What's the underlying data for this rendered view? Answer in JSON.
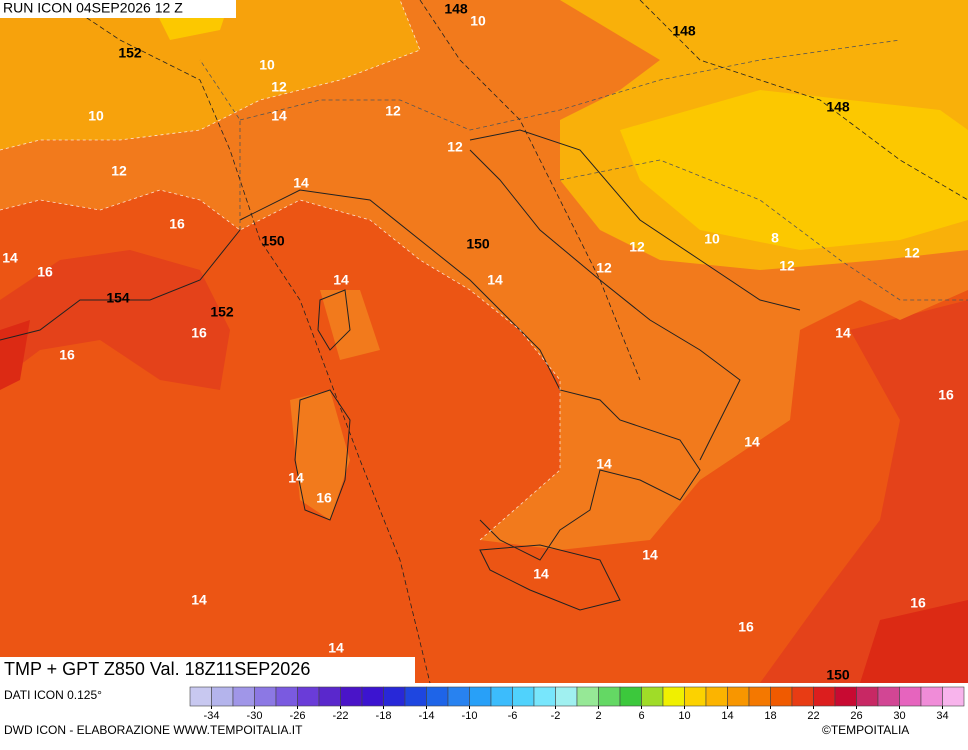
{
  "header": {
    "run": "RUN ICON 04SEP2026 12 Z",
    "title": "TMP + GPT Z850 Val. 18Z11SEP2026"
  },
  "footer": {
    "source": "DATI ICON 0.125°",
    "credit": "DWD ICON - ELABORAZIONE WWW.TEMPOITALIA.IT",
    "brand": "©TEMPOITALIA"
  },
  "colorbar": {
    "lim": [
      -36,
      36
    ],
    "ticks": [
      -34,
      -30,
      -26,
      -22,
      -18,
      -14,
      -10,
      -6,
      -2,
      2,
      6,
      10,
      14,
      18,
      22,
      26,
      30,
      34
    ],
    "colors": [
      "#c8c8f0",
      "#b4b4ec",
      "#a096e8",
      "#8c78e4",
      "#7a5ae0",
      "#6a3cd8",
      "#5a28cc",
      "#4a14c8",
      "#3c14d0",
      "#2828d8",
      "#1e46e0",
      "#1e64e8",
      "#2882f0",
      "#28a0f8",
      "#3cbcfc",
      "#50d2fc",
      "#78e6fc",
      "#a0f0f0",
      "#96e896",
      "#64d864",
      "#3cc83c",
      "#a0dc28",
      "#f0f000",
      "#fcd200",
      "#fcb400",
      "#f89600",
      "#f47800",
      "#f05a00",
      "#e83c14",
      "#dc1e1e",
      "#c80a32",
      "#c82864",
      "#d24694",
      "#e664be",
      "#f08cd8",
      "#f8b4ec"
    ]
  },
  "map": {
    "labels": [
      {
        "value": 148,
        "color": "#000000"
      },
      {
        "value": 10,
        "color": "#ffffff"
      },
      {
        "value": 148,
        "color": "#000000"
      },
      {
        "value": 152,
        "color": "#000000"
      },
      {
        "value": 10,
        "color": "#ffffff"
      },
      {
        "value": 12,
        "color": "#ffffff"
      },
      {
        "value": 10,
        "color": "#ffffff"
      },
      {
        "value": 12,
        "color": "#ffffff"
      },
      {
        "value": 14,
        "color": "#ffffff"
      },
      {
        "value": 12,
        "color": "#ffffff"
      },
      {
        "value": 148,
        "color": "#000000"
      },
      {
        "value": 12,
        "color": "#ffffff"
      },
      {
        "value": 14,
        "color": "#ffffff"
      },
      {
        "value": 16,
        "color": "#ffffff"
      },
      {
        "value": 150,
        "color": "#000000"
      },
      {
        "value": 150,
        "color": "#000000"
      },
      {
        "value": 12,
        "color": "#ffffff"
      },
      {
        "value": 10,
        "color": "#ffffff"
      },
      {
        "value": 8,
        "color": "#ffffff"
      },
      {
        "value": 12,
        "color": "#ffffff"
      },
      {
        "value": 12,
        "color": "#ffffff"
      },
      {
        "value": 12,
        "color": "#ffffff"
      },
      {
        "value": 14,
        "color": "#ffffff"
      },
      {
        "value": 16,
        "color": "#ffffff"
      },
      {
        "value": 14,
        "color": "#ffffff"
      },
      {
        "value": 14,
        "color": "#ffffff"
      },
      {
        "value": 154,
        "color": "#000000"
      },
      {
        "value": 152,
        "color": "#000000"
      },
      {
        "value": 16,
        "color": "#ffffff"
      },
      {
        "value": 14,
        "color": "#ffffff"
      },
      {
        "value": 16,
        "color": "#ffffff"
      },
      {
        "value": 16,
        "color": "#ffffff"
      },
      {
        "value": 14,
        "color": "#ffffff"
      },
      {
        "value": 14,
        "color": "#ffffff"
      },
      {
        "value": 14,
        "color": "#ffffff"
      },
      {
        "value": 16,
        "color": "#ffffff"
      },
      {
        "value": 14,
        "color": "#ffffff"
      },
      {
        "value": 14,
        "color": "#ffffff"
      },
      {
        "value": 14,
        "color": "#ffffff"
      },
      {
        "value": 16,
        "color": "#ffffff"
      },
      {
        "value": 16,
        "color": "#ffffff"
      },
      {
        "value": 14,
        "color": "#ffffff"
      },
      {
        "value": 150,
        "color": "#000000"
      }
    ]
  }
}
